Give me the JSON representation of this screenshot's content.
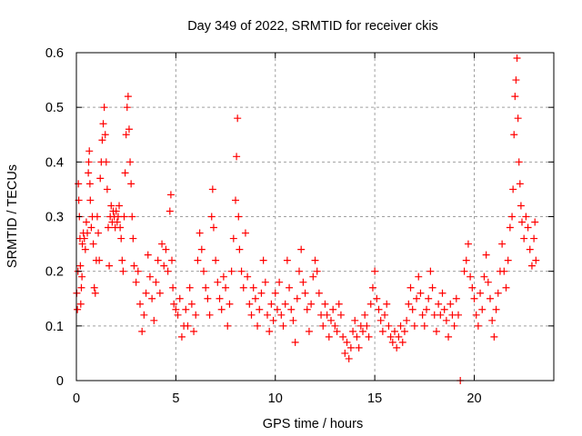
{
  "chart_data": {
    "type": "scatter",
    "title": "Day 349 of 2022, SRMTID for receiver ckis",
    "xlabel": "GPS time / hours",
    "ylabel": "SRMTID / TECUs",
    "xlim": [
      0,
      24
    ],
    "ylim": [
      0,
      0.6
    ],
    "xticks": [
      0,
      5,
      10,
      15,
      20
    ],
    "xtick_labels": [
      "0",
      "5",
      "10",
      "15",
      "20"
    ],
    "yticks": [
      0,
      0.1,
      0.2,
      0.3,
      0.4,
      0.5,
      0.6
    ],
    "ytick_labels": [
      "0",
      "0.1",
      "0.2",
      "0.3",
      "0.4",
      "0.5",
      "0.6"
    ],
    "grid": true,
    "legend": "none",
    "marker": "plus",
    "series": [
      {
        "name": "SRMTID ckis",
        "color": "#ff0000",
        "points": [
          [
            0.02,
            0.16
          ],
          [
            0.05,
            0.13
          ],
          [
            0.08,
            0.2
          ],
          [
            0.1,
            0.36
          ],
          [
            0.12,
            0.33
          ],
          [
            0.15,
            0.3
          ],
          [
            0.18,
            0.26
          ],
          [
            0.2,
            0.21
          ],
          [
            0.22,
            0.14
          ],
          [
            0.25,
            0.17
          ],
          [
            0.28,
            0.19
          ],
          [
            0.3,
            0.25
          ],
          [
            0.35,
            0.27
          ],
          [
            0.4,
            0.26
          ],
          [
            0.45,
            0.24
          ],
          [
            0.5,
            0.29
          ],
          [
            0.55,
            0.27
          ],
          [
            0.6,
            0.38
          ],
          [
            0.62,
            0.4
          ],
          [
            0.65,
            0.42
          ],
          [
            0.68,
            0.36
          ],
          [
            0.7,
            0.33
          ],
          [
            0.75,
            0.28
          ],
          [
            0.8,
            0.3
          ],
          [
            0.85,
            0.25
          ],
          [
            0.9,
            0.17
          ],
          [
            0.95,
            0.16
          ],
          [
            1.0,
            0.22
          ],
          [
            1.05,
            0.3
          ],
          [
            1.1,
            0.27
          ],
          [
            1.15,
            0.22
          ],
          [
            1.2,
            0.37
          ],
          [
            1.25,
            0.4
          ],
          [
            1.3,
            0.44
          ],
          [
            1.35,
            0.47
          ],
          [
            1.4,
            0.5
          ],
          [
            1.45,
            0.45
          ],
          [
            1.5,
            0.4
          ],
          [
            1.55,
            0.35
          ],
          [
            1.6,
            0.28
          ],
          [
            1.65,
            0.21
          ],
          [
            1.7,
            0.3
          ],
          [
            1.75,
            0.32
          ],
          [
            1.8,
            0.29
          ],
          [
            1.85,
            0.31
          ],
          [
            1.9,
            0.3
          ],
          [
            1.95,
            0.28
          ],
          [
            2.0,
            0.31
          ],
          [
            2.05,
            0.29
          ],
          [
            2.1,
            0.3
          ],
          [
            2.15,
            0.32
          ],
          [
            2.2,
            0.28
          ],
          [
            2.25,
            0.26
          ],
          [
            2.3,
            0.22
          ],
          [
            2.35,
            0.2
          ],
          [
            2.4,
            0.3
          ],
          [
            2.45,
            0.38
          ],
          [
            2.5,
            0.45
          ],
          [
            2.55,
            0.5
          ],
          [
            2.6,
            0.52
          ],
          [
            2.65,
            0.46
          ],
          [
            2.7,
            0.4
          ],
          [
            2.75,
            0.36
          ],
          [
            2.8,
            0.3
          ],
          [
            2.85,
            0.26
          ],
          [
            2.9,
            0.21
          ],
          [
            3.0,
            0.18
          ],
          [
            3.1,
            0.2
          ],
          [
            3.2,
            0.14
          ],
          [
            3.3,
            0.09
          ],
          [
            3.4,
            0.12
          ],
          [
            3.5,
            0.16
          ],
          [
            3.6,
            0.23
          ],
          [
            3.7,
            0.19
          ],
          [
            3.8,
            0.15
          ],
          [
            3.9,
            0.11
          ],
          [
            4.0,
            0.18
          ],
          [
            4.1,
            0.22
          ],
          [
            4.2,
            0.16
          ],
          [
            4.3,
            0.25
          ],
          [
            4.4,
            0.21
          ],
          [
            4.5,
            0.24
          ],
          [
            4.6,
            0.2
          ],
          [
            4.7,
            0.31
          ],
          [
            4.75,
            0.34
          ],
          [
            4.8,
            0.22
          ],
          [
            4.85,
            0.17
          ],
          [
            4.9,
            0.14
          ],
          [
            5.0,
            0.13
          ],
          [
            5.1,
            0.12
          ],
          [
            5.2,
            0.15
          ],
          [
            5.3,
            0.08
          ],
          [
            5.4,
            0.1
          ],
          [
            5.5,
            0.13
          ],
          [
            5.6,
            0.1
          ],
          [
            5.7,
            0.17
          ],
          [
            5.8,
            0.14
          ],
          [
            5.9,
            0.09
          ],
          [
            6.0,
            0.12
          ],
          [
            6.1,
            0.22
          ],
          [
            6.2,
            0.27
          ],
          [
            6.3,
            0.24
          ],
          [
            6.4,
            0.2
          ],
          [
            6.5,
            0.17
          ],
          [
            6.6,
            0.15
          ],
          [
            6.7,
            0.12
          ],
          [
            6.8,
            0.3
          ],
          [
            6.85,
            0.35
          ],
          [
            6.9,
            0.28
          ],
          [
            7.0,
            0.22
          ],
          [
            7.1,
            0.18
          ],
          [
            7.2,
            0.15
          ],
          [
            7.3,
            0.13
          ],
          [
            7.4,
            0.19
          ],
          [
            7.5,
            0.17
          ],
          [
            7.6,
            0.1
          ],
          [
            7.7,
            0.14
          ],
          [
            7.8,
            0.2
          ],
          [
            7.9,
            0.26
          ],
          [
            8.0,
            0.33
          ],
          [
            8.05,
            0.41
          ],
          [
            8.1,
            0.48
          ],
          [
            8.15,
            0.3
          ],
          [
            8.2,
            0.24
          ],
          [
            8.3,
            0.2
          ],
          [
            8.4,
            0.17
          ],
          [
            8.5,
            0.27
          ],
          [
            8.6,
            0.19
          ],
          [
            8.7,
            0.14
          ],
          [
            8.8,
            0.12
          ],
          [
            8.9,
            0.17
          ],
          [
            9.0,
            0.15
          ],
          [
            9.1,
            0.1
          ],
          [
            9.2,
            0.13
          ],
          [
            9.3,
            0.16
          ],
          [
            9.4,
            0.22
          ],
          [
            9.5,
            0.18
          ],
          [
            9.6,
            0.12
          ],
          [
            9.7,
            0.09
          ],
          [
            9.8,
            0.14
          ],
          [
            9.9,
            0.11
          ],
          [
            10.0,
            0.16
          ],
          [
            10.1,
            0.13
          ],
          [
            10.2,
            0.18
          ],
          [
            10.3,
            0.12
          ],
          [
            10.4,
            0.1
          ],
          [
            10.5,
            0.14
          ],
          [
            10.6,
            0.22
          ],
          [
            10.7,
            0.17
          ],
          [
            10.8,
            0.13
          ],
          [
            10.9,
            0.11
          ],
          [
            11.0,
            0.07
          ],
          [
            11.1,
            0.15
          ],
          [
            11.2,
            0.2
          ],
          [
            11.3,
            0.24
          ],
          [
            11.4,
            0.18
          ],
          [
            11.5,
            0.16
          ],
          [
            11.6,
            0.13
          ],
          [
            11.7,
            0.09
          ],
          [
            11.8,
            0.14
          ],
          [
            11.9,
            0.19
          ],
          [
            12.0,
            0.22
          ],
          [
            12.1,
            0.2
          ],
          [
            12.2,
            0.16
          ],
          [
            12.3,
            0.12
          ],
          [
            12.4,
            0.1
          ],
          [
            12.5,
            0.14
          ],
          [
            12.6,
            0.12
          ],
          [
            12.7,
            0.08
          ],
          [
            12.8,
            0.11
          ],
          [
            12.9,
            0.13
          ],
          [
            13.0,
            0.1
          ],
          [
            13.1,
            0.09
          ],
          [
            13.2,
            0.14
          ],
          [
            13.3,
            0.12
          ],
          [
            13.4,
            0.08
          ],
          [
            13.5,
            0.05
          ],
          [
            13.6,
            0.07
          ],
          [
            13.7,
            0.04
          ],
          [
            13.8,
            0.06
          ],
          [
            13.9,
            0.09
          ],
          [
            14.0,
            0.11
          ],
          [
            14.1,
            0.08
          ],
          [
            14.2,
            0.06
          ],
          [
            14.3,
            0.1
          ],
          [
            14.4,
            0.09
          ],
          [
            14.5,
            0.12
          ],
          [
            14.6,
            0.1
          ],
          [
            14.7,
            0.08
          ],
          [
            14.8,
            0.14
          ],
          [
            14.9,
            0.17
          ],
          [
            15.0,
            0.2
          ],
          [
            15.1,
            0.15
          ],
          [
            15.2,
            0.13
          ],
          [
            15.3,
            0.11
          ],
          [
            15.4,
            0.09
          ],
          [
            15.5,
            0.12
          ],
          [
            15.6,
            0.14
          ],
          [
            15.7,
            0.1
          ],
          [
            15.8,
            0.08
          ],
          [
            15.9,
            0.07
          ],
          [
            16.0,
            0.09
          ],
          [
            16.1,
            0.06
          ],
          [
            16.2,
            0.08
          ],
          [
            16.3,
            0.1
          ],
          [
            16.4,
            0.07
          ],
          [
            16.5,
            0.09
          ],
          [
            16.6,
            0.11
          ],
          [
            16.7,
            0.14
          ],
          [
            16.8,
            0.17
          ],
          [
            16.9,
            0.13
          ],
          [
            17.0,
            0.1
          ],
          [
            17.1,
            0.15
          ],
          [
            17.2,
            0.19
          ],
          [
            17.3,
            0.16
          ],
          [
            17.4,
            0.12
          ],
          [
            17.5,
            0.1
          ],
          [
            17.6,
            0.13
          ],
          [
            17.7,
            0.15
          ],
          [
            17.8,
            0.2
          ],
          [
            17.9,
            0.17
          ],
          [
            18.0,
            0.12
          ],
          [
            18.1,
            0.09
          ],
          [
            18.2,
            0.14
          ],
          [
            18.3,
            0.12
          ],
          [
            18.4,
            0.16
          ],
          [
            18.5,
            0.13
          ],
          [
            18.6,
            0.11
          ],
          [
            18.7,
            0.08
          ],
          [
            18.8,
            0.14
          ],
          [
            18.9,
            0.12
          ],
          [
            19.0,
            0.1
          ],
          [
            19.1,
            0.15
          ],
          [
            19.2,
            0.12
          ],
          [
            19.3,
            0.0
          ],
          [
            19.5,
            0.2
          ],
          [
            19.6,
            0.22
          ],
          [
            19.7,
            0.25
          ],
          [
            19.8,
            0.19
          ],
          [
            19.9,
            0.17
          ],
          [
            20.0,
            0.15
          ],
          [
            20.1,
            0.12
          ],
          [
            20.2,
            0.1
          ],
          [
            20.3,
            0.16
          ],
          [
            20.4,
            0.13
          ],
          [
            20.5,
            0.19
          ],
          [
            20.6,
            0.23
          ],
          [
            20.7,
            0.18
          ],
          [
            20.8,
            0.15
          ],
          [
            20.9,
            0.11
          ],
          [
            21.0,
            0.08
          ],
          [
            21.1,
            0.13
          ],
          [
            21.2,
            0.16
          ],
          [
            21.3,
            0.2
          ],
          [
            21.4,
            0.25
          ],
          [
            21.5,
            0.2
          ],
          [
            21.6,
            0.17
          ],
          [
            21.7,
            0.22
          ],
          [
            21.8,
            0.28
          ],
          [
            21.9,
            0.3
          ],
          [
            21.95,
            0.35
          ],
          [
            22.0,
            0.45
          ],
          [
            22.05,
            0.52
          ],
          [
            22.1,
            0.55
          ],
          [
            22.15,
            0.59
          ],
          [
            22.2,
            0.48
          ],
          [
            22.25,
            0.4
          ],
          [
            22.3,
            0.36
          ],
          [
            22.35,
            0.32
          ],
          [
            22.4,
            0.29
          ],
          [
            22.5,
            0.26
          ],
          [
            22.6,
            0.3
          ],
          [
            22.7,
            0.28
          ],
          [
            22.8,
            0.24
          ],
          [
            22.9,
            0.21
          ],
          [
            23.0,
            0.26
          ],
          [
            23.05,
            0.29
          ],
          [
            23.1,
            0.22
          ]
        ]
      }
    ]
  }
}
